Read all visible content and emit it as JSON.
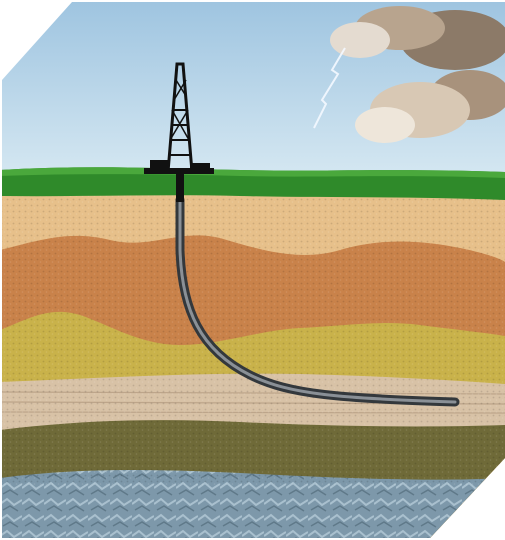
{
  "scene": {
    "kind": "illustration",
    "subject": "horizontal-drilling-cross-section",
    "elements": [
      "sky",
      "clouds",
      "lightning",
      "drilling-rig",
      "grass-surface",
      "soil-layers",
      "wellbore",
      "bedrock"
    ],
    "colors": {
      "sky_top": "#9ec4e0",
      "sky_bottom": "#dcecf4",
      "cloud": "#b8a48e",
      "grass": "#2f8a2a",
      "sand_layer": "#e7c08a",
      "clay_layer": "#c9824a",
      "ochre_layer": "#c9b24a",
      "shale_layer": "#d8c2a6",
      "dark_soil": "#6f6a38",
      "bedrock": "#7a96a8",
      "rig": "#111111",
      "pipe": "#4d5257"
    }
  }
}
